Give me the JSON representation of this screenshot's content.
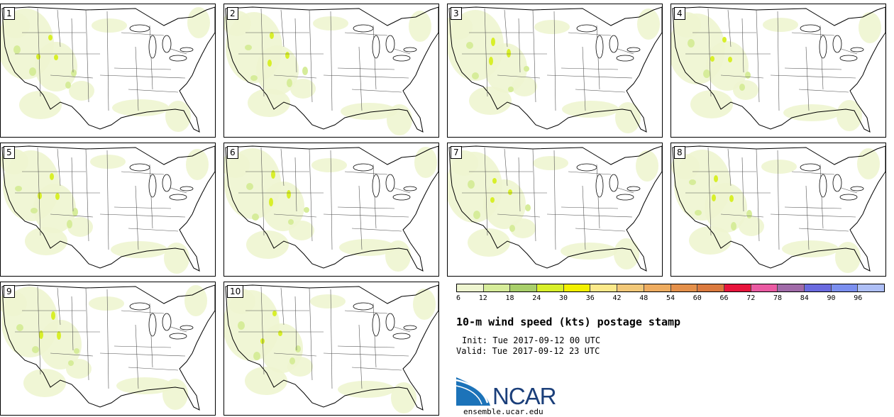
{
  "panels": [
    {
      "label": "1"
    },
    {
      "label": "2"
    },
    {
      "label": "3"
    },
    {
      "label": "4"
    },
    {
      "label": "5"
    },
    {
      "label": "6"
    },
    {
      "label": "7"
    },
    {
      "label": "8"
    },
    {
      "label": "9"
    },
    {
      "label": "10"
    }
  ],
  "colorbar": {
    "colors": [
      "#eef5d0",
      "#d6ec9a",
      "#a8cf6a",
      "#d8ef2a",
      "#f2f000",
      "#fbe98a",
      "#f2c878",
      "#eeac60",
      "#e4904a",
      "#db7a3e",
      "#e8153c",
      "#ea5aa2",
      "#a06aa8",
      "#6a6adf",
      "#7b8fef",
      "#aebff6"
    ],
    "labels": [
      "6",
      "12",
      "18",
      "24",
      "30",
      "36",
      "42",
      "48",
      "54",
      "60",
      "66",
      "72",
      "78",
      "84",
      "90",
      "96"
    ]
  },
  "title": "10-m wind speed (kts) postage stamp",
  "init_text": "Init: Tue 2017-09-12 00 UTC",
  "valid_text": "Valid: Tue 2017-09-12 23 UTC",
  "logo_text": "NCAR",
  "site_text": "ensemble.ucar.edu"
}
